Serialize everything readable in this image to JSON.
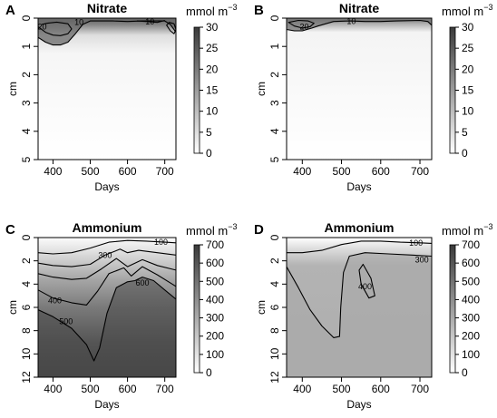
{
  "chart_data": [
    {
      "type": "heatmap",
      "panel": "A",
      "title": "Nitrate",
      "colorbar": {
        "unit_base": "mmol m",
        "unit_exp": "−3",
        "min": 0,
        "max": 30,
        "ticks": [
          0,
          5,
          10,
          15,
          20,
          25,
          30
        ],
        "colors": [
          "#ffffff",
          "#3a3a3a"
        ]
      },
      "xlabel": "Days",
      "ylabel": "cm",
      "xlim": [
        360,
        730
      ],
      "ylim": [
        0,
        5
      ],
      "y_reversed": true,
      "xticks": [
        400,
        500,
        600,
        700
      ],
      "yticks": [
        0,
        1,
        2,
        3,
        4,
        5
      ],
      "field_description": "high nitrate near surface, decaying with depth",
      "contours": [
        {
          "level": 10,
          "label": "10",
          "points": [
            [
              360,
              0.68
            ],
            [
              380,
              0.85
            ],
            [
              400,
              0.95
            ],
            [
              420,
              0.95
            ],
            [
              440,
              0.85
            ],
            [
              460,
              0.55
            ],
            [
              480,
              0.22
            ],
            [
              500,
              0.1
            ],
            [
              560,
              0.1
            ],
            [
              600,
              0.12
            ],
            [
              640,
              0.1
            ],
            [
              700,
              0.1
            ],
            [
              715,
              0.22
            ],
            [
              730,
              0.5
            ]
          ],
          "label_at": [
            470,
            0.15
          ]
        },
        {
          "level": 10,
          "label": "10",
          "points": [
            [
              625,
              0.1
            ],
            [
              650,
              0.12
            ],
            [
              680,
              0.15
            ],
            [
              700,
              0.08
            ]
          ],
          "label_at": [
            660,
            0.13
          ]
        },
        {
          "level": 20,
          "label": "20",
          "points": [
            [
              360,
              0.3
            ],
            [
              380,
              0.5
            ],
            [
              400,
              0.6
            ],
            [
              420,
              0.62
            ],
            [
              440,
              0.55
            ],
            [
              450,
              0.38
            ],
            [
              440,
              0.2
            ],
            [
              410,
              0.14
            ],
            [
              385,
              0.18
            ],
            [
              370,
              0.22
            ]
          ],
          "label_at": [
            371,
            0.3
          ]
        },
        {
          "level": 20,
          "label": "",
          "points": [
            [
              705,
              0.25
            ],
            [
              715,
              0.45
            ],
            [
              725,
              0.55
            ],
            [
              730,
              0.4
            ],
            [
              725,
              0.2
            ],
            [
              712,
              0.15
            ]
          ],
          "label_at": null
        }
      ]
    },
    {
      "type": "heatmap",
      "panel": "B",
      "title": "Nitrate",
      "colorbar": {
        "unit_base": "mmol m",
        "unit_exp": "−3",
        "min": 0,
        "max": 30,
        "ticks": [
          0,
          5,
          10,
          15,
          20,
          25,
          30
        ],
        "colors": [
          "#ffffff",
          "#3a3a3a"
        ]
      },
      "xlabel": "Days",
      "ylabel": "cm",
      "xlim": [
        360,
        730
      ],
      "ylim": [
        0,
        5
      ],
      "y_reversed": true,
      "xticks": [
        400,
        500,
        600,
        700
      ],
      "yticks": [
        0,
        1,
        2,
        3,
        4,
        5
      ],
      "contours": [
        {
          "level": 10,
          "label": "10",
          "points": [
            [
              360,
              0.4
            ],
            [
              380,
              0.45
            ],
            [
              400,
              0.45
            ],
            [
              425,
              0.35
            ],
            [
              440,
              0.28
            ],
            [
              460,
              0.2
            ],
            [
              480,
              0.12
            ],
            [
              520,
              0.1
            ],
            [
              560,
              0.12
            ],
            [
              600,
              0.12
            ],
            [
              640,
              0.1
            ],
            [
              700,
              0.08
            ],
            [
              720,
              0.12
            ],
            [
              730,
              0.25
            ]
          ],
          "label_at": [
            525,
            0.12
          ]
        },
        {
          "level": 20,
          "label": "20",
          "points": [
            [
              365,
              0.15
            ],
            [
              380,
              0.28
            ],
            [
              400,
              0.35
            ],
            [
              420,
              0.3
            ],
            [
              430,
              0.18
            ],
            [
              415,
              0.1
            ],
            [
              390,
              0.08
            ]
          ],
          "label_at": [
            405,
            0.3
          ]
        }
      ]
    },
    {
      "type": "heatmap",
      "panel": "C",
      "title": "Ammonium",
      "colorbar": {
        "unit_base": "mmol m",
        "unit_exp": "−3",
        "min": 0,
        "max": 700,
        "ticks": [
          0,
          100,
          200,
          300,
          400,
          500,
          600,
          700
        ],
        "colors": [
          "#ffffff",
          "#3a3a3a"
        ]
      },
      "xlabel": "Days",
      "ylabel": "cm",
      "xlim": [
        360,
        730
      ],
      "ylim": [
        0,
        12
      ],
      "y_reversed": true,
      "xticks": [
        400,
        500,
        600,
        700
      ],
      "yticks": [
        0,
        2,
        4,
        6,
        8,
        10,
        12
      ],
      "contours": [
        {
          "level": 100,
          "label": "100",
          "points": [
            [
              360,
              1.3
            ],
            [
              400,
              1.4
            ],
            [
              450,
              1.3
            ],
            [
              500,
              0.9
            ],
            [
              550,
              0.4
            ],
            [
              600,
              0.25
            ],
            [
              650,
              0.3
            ],
            [
              700,
              0.4
            ],
            [
              730,
              0.45
            ]
          ],
          "label_at": [
            690,
            0.4
          ]
        },
        {
          "level": 300,
          "label": "300",
          "points": [
            [
              360,
              2.2
            ],
            [
              400,
              2.4
            ],
            [
              450,
              2.5
            ],
            [
              500,
              2.3
            ],
            [
              540,
              1.5
            ],
            [
              580,
              1.0
            ],
            [
              600,
              1.3
            ],
            [
              630,
              1.1
            ],
            [
              680,
              1.3
            ],
            [
              730,
              1.5
            ]
          ],
          "label_at": [
            540,
            1.5
          ]
        },
        {
          "level": 400,
          "label": "400",
          "points": [
            [
              360,
              3.1
            ],
            [
              400,
              3.4
            ],
            [
              450,
              3.6
            ],
            [
              490,
              3.5
            ],
            [
              530,
              2.7
            ],
            [
              570,
              1.8
            ],
            [
              600,
              2.5
            ],
            [
              640,
              1.9
            ],
            [
              680,
              2.4
            ],
            [
              730,
              2.8
            ]
          ],
          "label_at": [
            405,
            5.4
          ]
        },
        {
          "level": 500,
          "label": "500",
          "points": [
            [
              360,
              4.5
            ],
            [
              400,
              5.2
            ],
            [
              450,
              5.6
            ],
            [
              490,
              5.8
            ],
            [
              520,
              4.6
            ],
            [
              550,
              3.1
            ],
            [
              590,
              2.6
            ],
            [
              610,
              3.3
            ],
            [
              640,
              2.5
            ],
            [
              680,
              3.2
            ],
            [
              720,
              4.0
            ],
            [
              730,
              4.2
            ]
          ],
          "label_at": [
            435,
            7.2
          ]
        },
        {
          "level": 600,
          "label": "600",
          "points": [
            [
              360,
              6.2
            ],
            [
              400,
              6.8
            ],
            [
              450,
              7.8
            ],
            [
              490,
              9.2
            ],
            [
              510,
              10.6
            ],
            [
              525,
              9.5
            ],
            [
              545,
              6.5
            ],
            [
              570,
              4.3
            ],
            [
              600,
              3.8
            ],
            [
              620,
              3.7
            ],
            [
              640,
              3.4
            ],
            [
              670,
              3.7
            ],
            [
              700,
              4.5
            ],
            [
              730,
              5.3
            ]
          ],
          "label_at": [
            640,
            3.9
          ]
        }
      ]
    },
    {
      "type": "heatmap",
      "panel": "D",
      "title": "Ammonium",
      "colorbar": {
        "unit_base": "mmol m",
        "unit_exp": "−3",
        "min": 0,
        "max": 700,
        "ticks": [
          0,
          100,
          200,
          300,
          400,
          500,
          600,
          700
        ],
        "colors": [
          "#ffffff",
          "#3a3a3a"
        ]
      },
      "xlabel": "Days",
      "ylabel": "cm",
      "xlim": [
        360,
        730
      ],
      "ylim": [
        0,
        12
      ],
      "y_reversed": true,
      "xticks": [
        400,
        500,
        600,
        700
      ],
      "yticks": [
        0,
        2,
        4,
        6,
        8,
        10,
        12
      ],
      "contours": [
        {
          "level": 100,
          "label": "100",
          "points": [
            [
              360,
              1.3
            ],
            [
              400,
              1.3
            ],
            [
              450,
              1.1
            ],
            [
              500,
              0.6
            ],
            [
              550,
              0.3
            ],
            [
              600,
              0.3
            ],
            [
              650,
              0.4
            ],
            [
              700,
              0.45
            ],
            [
              730,
              0.5
            ]
          ],
          "label_at": [
            690,
            0.45
          ]
        },
        {
          "level": 300,
          "label": "300",
          "points": [
            [
              360,
              2.5
            ],
            [
              390,
              4.3
            ],
            [
              420,
              6.2
            ],
            [
              450,
              7.6
            ],
            [
              480,
              8.6
            ],
            [
              495,
              8.5
            ],
            [
              498,
              6.0
            ],
            [
              505,
              3.0
            ],
            [
              520,
              1.6
            ],
            [
              560,
              1.3
            ],
            [
              620,
              1.4
            ],
            [
              680,
              1.5
            ],
            [
              730,
              1.6
            ]
          ],
          "label_at": [
            705,
            1.9
          ]
        },
        {
          "level": 400,
          "label": "400",
          "points": [
            [
              555,
              2.3
            ],
            [
              575,
              3.5
            ],
            [
              585,
              5.0
            ],
            [
              570,
              5.2
            ],
            [
              550,
              4.0
            ],
            [
              545,
              2.8
            ]
          ],
          "label_at": [
            560,
            4.2
          ]
        }
      ]
    }
  ]
}
